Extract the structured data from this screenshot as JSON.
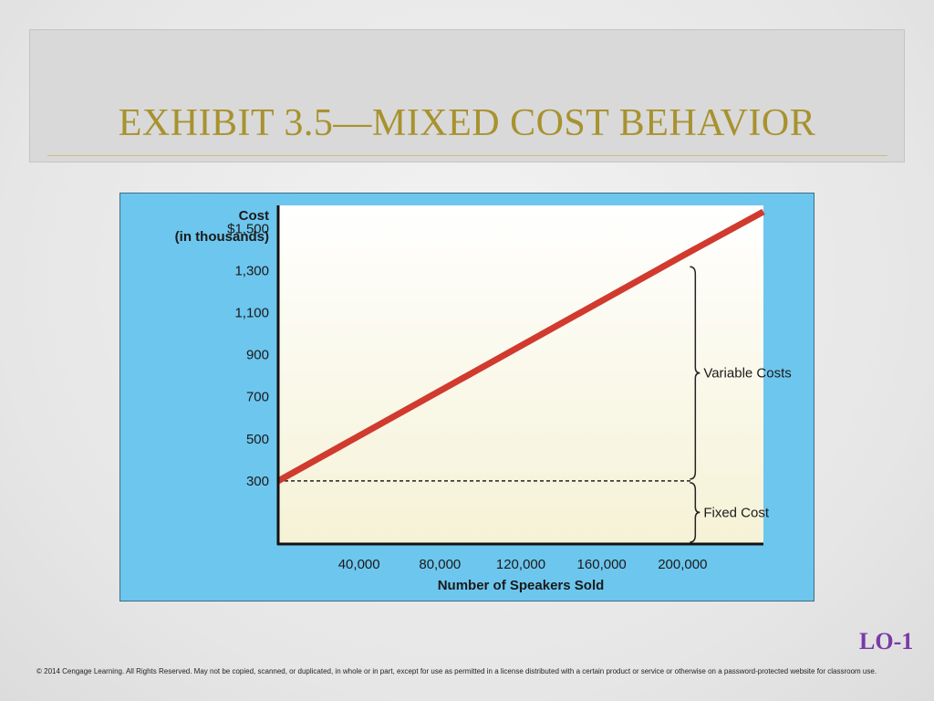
{
  "slide": {
    "title": "EXHIBIT 3.5—MIXED COST BEHAVIOR",
    "lo_badge": "LO-1",
    "footer": "© 2014 Cengage Learning. All Rights Reserved. May not be copied, scanned, or duplicated, in whole or in part, except for use as permitted in a license distributed with a certain product or service or otherwise on a password-protected website for classroom use."
  },
  "colors": {
    "title": "#a8922e",
    "chart_frame": "#6dc6ee",
    "line": "#d13a2e",
    "lo_badge": "#7a3aa8"
  },
  "chart_data": {
    "type": "line",
    "ylabel_line1": "Cost",
    "ylabel_line2": "(in thousands)",
    "xlabel": "Number of Speakers Sold",
    "y_ticks": [
      300,
      500,
      700,
      900,
      1100,
      1300,
      1500
    ],
    "y_tick_labels": [
      "300",
      "500",
      "700",
      "900",
      "1,100",
      "1,300",
      "$1,500"
    ],
    "x_ticks": [
      40000,
      80000,
      120000,
      160000,
      200000
    ],
    "x_tick_labels": [
      "40,000",
      "80,000",
      "120,000",
      "160,000",
      "200,000"
    ],
    "xlim": [
      0,
      240000
    ],
    "ylim": [
      0,
      1610
    ],
    "series": [
      {
        "x": [
          0,
          200000,
          240000
        ],
        "y": [
          300,
          1370,
          1580
        ]
      }
    ],
    "fixed_cost": 300,
    "brace_x": 200000,
    "annotations": {
      "variable": "Variable Costs",
      "fixed": "Fixed Cost"
    }
  }
}
